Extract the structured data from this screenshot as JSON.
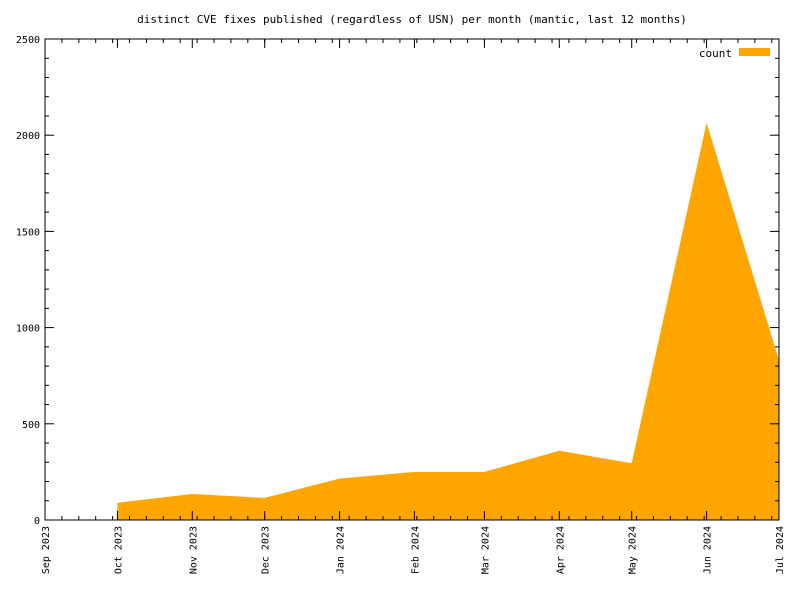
{
  "chart_data": {
    "type": "area",
    "title": "distinct CVE fixes published (regardless of USN) per month (mantic, last 12 months)",
    "xlabel": "",
    "ylabel": "",
    "x_ticks": [
      "Sep 2023",
      "Oct 2023",
      "Nov 2023",
      "Dec 2023",
      "Jan 2024",
      "Feb 2024",
      "Mar 2024",
      "Apr 2024",
      "May 2024",
      "Jun 2024",
      "Jul 2024"
    ],
    "y_ticks": [
      0,
      500,
      1000,
      1500,
      2000,
      2500
    ],
    "ylim": [
      0,
      2500
    ],
    "legend_position": "top-right",
    "series": [
      {
        "name": "count",
        "color": "#ffa500",
        "x": [
          "2023-10-01",
          "2023-11-01",
          "2023-12-01",
          "2024-01-01",
          "2024-02-01",
          "2024-03-01",
          "2024-04-01",
          "2024-05-01",
          "2024-06-01",
          "2024-07-01"
        ],
        "values": [
          90,
          135,
          115,
          215,
          250,
          250,
          360,
          295,
          2065,
          830
        ]
      }
    ],
    "grid": false
  }
}
